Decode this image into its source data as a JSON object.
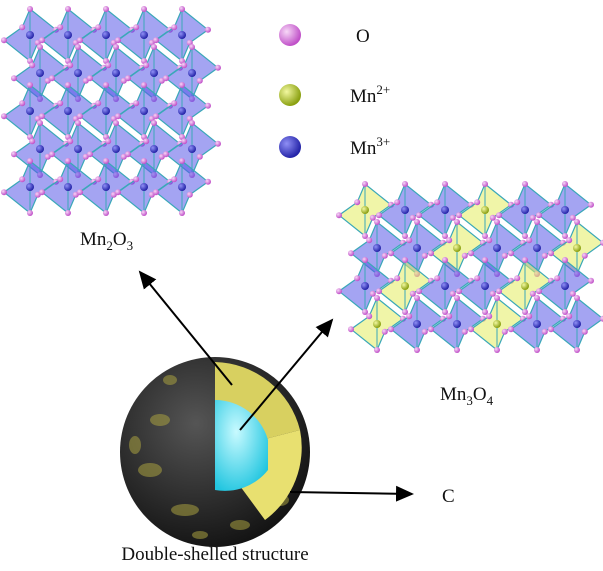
{
  "legend": [
    {
      "base": "O",
      "sup": ""
    },
    {
      "base": "Mn",
      "sup": "2+"
    },
    {
      "base": "Mn",
      "sup": "3+"
    }
  ],
  "labels": {
    "mn2o3": [
      "Mn",
      "2",
      "O",
      "3"
    ],
    "mn3o4": [
      "Mn",
      "3",
      "O",
      "4"
    ],
    "carbon": "C",
    "structure": "Double-shelled structure"
  }
}
